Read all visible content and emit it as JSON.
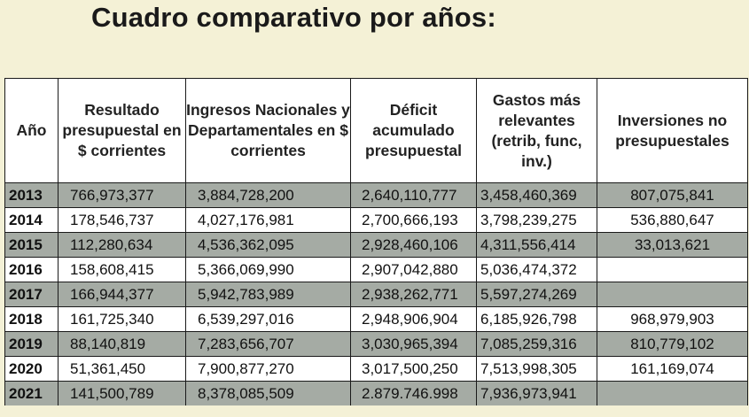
{
  "title": "Cuadro comparativo por años:",
  "columns": [
    "Año",
    "Resultado presupuestal en $ corrientes",
    "Ingresos Nacionales y Departamentales en $ corrientes",
    "Déficit acumulado presupuestal",
    "Gastos más relevantes (retrib, func, inv.)",
    "Inversiones no presupuestales"
  ],
  "rows": [
    {
      "year": "2013",
      "resultado": "766,973,377",
      "ingresos": "3,884,728,200",
      "deficit": "2,640,110,777",
      "gastos": "3,458,460,369",
      "inversiones": "807,075,841",
      "shade": true
    },
    {
      "year": "2014",
      "resultado": "178,546,737",
      "ingresos": "4,027,176,981",
      "deficit": "2,700,666,193",
      "gastos": "3,798,239,275",
      "inversiones": "536,880,647",
      "shade": false
    },
    {
      "year": "2015",
      "resultado": "112,280,634",
      "ingresos": "4,536,362,095",
      "deficit": "2,928,460,106",
      "gastos": "4,311,556,414",
      "inversiones": "33,013,621",
      "shade": true
    },
    {
      "year": "2016",
      "resultado": "158,608,415",
      "ingresos": "5,366,069,990",
      "deficit": "2,907,042,880",
      "gastos": "5,036,474,372",
      "inversiones": "",
      "shade": false
    },
    {
      "year": "2017",
      "resultado": "166,944,377",
      "ingresos": "5,942,783,989",
      "deficit": "2,938,262,771",
      "gastos": "5,597,274,269",
      "inversiones": "",
      "shade": true
    },
    {
      "year": "2018",
      "resultado": "161,725,340",
      "ingresos": "6,539,297,016",
      "deficit": "2,948,906,904",
      "gastos": "6,185,926,798",
      "inversiones": "968,979,903",
      "shade": false
    },
    {
      "year": "2019",
      "resultado": "88,140,819",
      "ingresos": "7,283,656,707",
      "deficit": "3,030,965,394",
      "gastos": "7,085,259,316",
      "inversiones": "810,779,102",
      "shade": true
    },
    {
      "year": "2020",
      "resultado": "51,361,450",
      "ingresos": "7,900,877,270",
      "deficit": "3,017,500,250",
      "gastos": "7,513,998,305",
      "inversiones": "161,169,074",
      "shade": false
    },
    {
      "year": "2021",
      "resultado": "141,500,789",
      "ingresos": "8,378,085,509",
      "deficit": "2.879.746.998",
      "gastos": "7,936,973,941",
      "inversiones": "",
      "shade": true
    }
  ]
}
